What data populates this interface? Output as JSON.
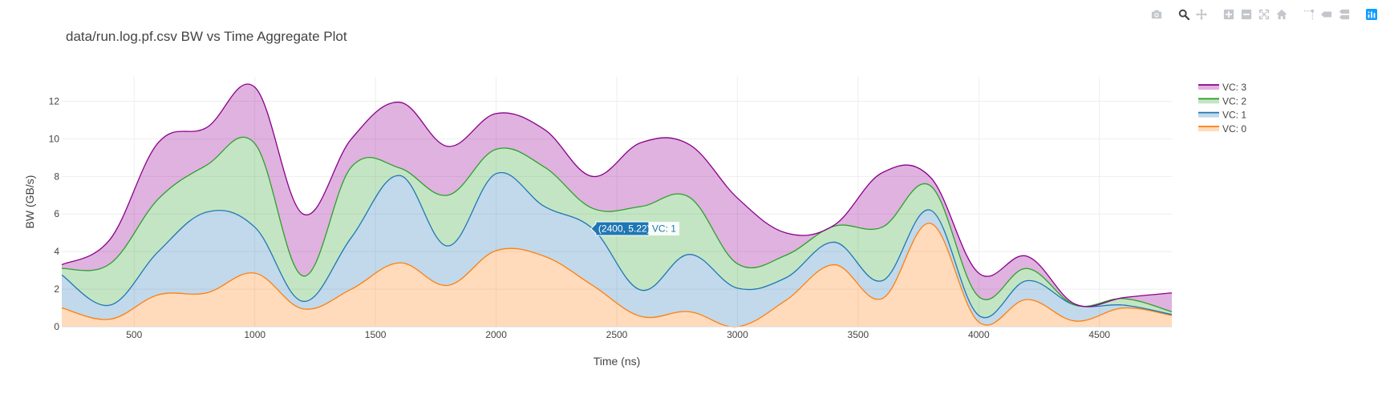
{
  "colors": {
    "modebar_icon": "#c3c7cc",
    "modebar_active": "#444444",
    "brand": "#119dff",
    "grid": "#eeeeee",
    "zeroline": "#444444"
  },
  "modebar": [
    {
      "name": "camera-icon",
      "label": "Download plot as a png"
    },
    {
      "name": "zoom-icon",
      "label": "Zoom"
    },
    {
      "name": "pan-icon",
      "label": "Pan"
    },
    {
      "name": "zoom-in-icon",
      "label": "Zoom in"
    },
    {
      "name": "zoom-out-icon",
      "label": "Zoom out"
    },
    {
      "name": "autoscale-icon",
      "label": "Autoscale"
    },
    {
      "name": "home-icon",
      "label": "Reset axes"
    },
    {
      "name": "spike-lines-icon",
      "label": "Toggle Spike Lines"
    },
    {
      "name": "hover-closest-icon",
      "label": "Show closest data on hover"
    },
    {
      "name": "hover-compare-icon",
      "label": "Compare data on hover"
    },
    {
      "name": "plotly-logo-icon",
      "label": "Produced with Plotly"
    }
  ],
  "hover": {
    "label": "(2400, 5.22)",
    "series": "VC: 1",
    "x": 2400,
    "y": 5.22,
    "color": "#1f77b4"
  },
  "chart_data": {
    "type": "area",
    "stacked": true,
    "title": "data/run.log.pf.csv BW vs Time Aggregate Plot",
    "xlabel": "Time (ns)",
    "ylabel": "BW (GB/s)",
    "xlim": [
      200,
      4800
    ],
    "ylim": [
      0,
      13.3
    ],
    "xticks": [
      500,
      1000,
      1500,
      2000,
      2500,
      3000,
      3500,
      4000,
      4500
    ],
    "yticks": [
      0,
      2,
      4,
      6,
      8,
      10,
      12
    ],
    "grid": true,
    "legend_position": "top-right",
    "x": [
      200,
      400,
      600,
      800,
      1000,
      1200,
      1400,
      1600,
      1800,
      2000,
      2200,
      2400,
      2600,
      2800,
      3000,
      3200,
      3400,
      3600,
      3800,
      4000,
      4200,
      4400,
      4600,
      4800
    ],
    "series": [
      {
        "name": "VC: 0",
        "color": "#ff7f0e",
        "fill": "rgba(255,127,14,0.28)",
        "values": [
          1.0,
          0.4,
          1.7,
          1.8,
          2.85,
          0.95,
          2.0,
          3.4,
          2.2,
          4.05,
          3.75,
          2.2,
          0.55,
          0.8,
          0.0,
          1.4,
          3.3,
          1.5,
          5.5,
          0.25,
          1.45,
          0.3,
          1.0,
          0.6
        ]
      },
      {
        "name": "VC: 1",
        "color": "#1f77b4",
        "fill": "rgba(31,119,180,0.28)",
        "values": [
          1.75,
          0.75,
          2.3,
          4.3,
          2.45,
          0.4,
          2.75,
          4.65,
          2.1,
          4.1,
          2.65,
          3.02,
          1.4,
          3.05,
          2.05,
          1.2,
          1.2,
          0.95,
          0.7,
          0.35,
          1.0,
          0.85,
          0.15,
          0.05
        ]
      },
      {
        "name": "VC: 2",
        "color": "#2ca02c",
        "fill": "rgba(44,160,44,0.28)",
        "values": [
          0.35,
          2.2,
          2.8,
          2.5,
          4.45,
          1.35,
          3.75,
          0.4,
          2.7,
          1.3,
          2.1,
          1.08,
          4.45,
          3.05,
          1.3,
          1.2,
          0.85,
          2.85,
          1.3,
          1.0,
          0.65,
          0.0,
          0.35,
          0.15
        ]
      },
      {
        "name": "VC: 3",
        "color": "#8b008b",
        "fill": "rgba(148,0,148,0.30)",
        "values": [
          0.2,
          1.3,
          3.0,
          2.0,
          3.0,
          3.3,
          1.5,
          3.5,
          2.6,
          1.9,
          2.0,
          1.7,
          3.4,
          2.8,
          3.5,
          1.2,
          0.05,
          2.9,
          0.45,
          1.25,
          0.65,
          0.05,
          0.05,
          1.0
        ]
      }
    ]
  }
}
